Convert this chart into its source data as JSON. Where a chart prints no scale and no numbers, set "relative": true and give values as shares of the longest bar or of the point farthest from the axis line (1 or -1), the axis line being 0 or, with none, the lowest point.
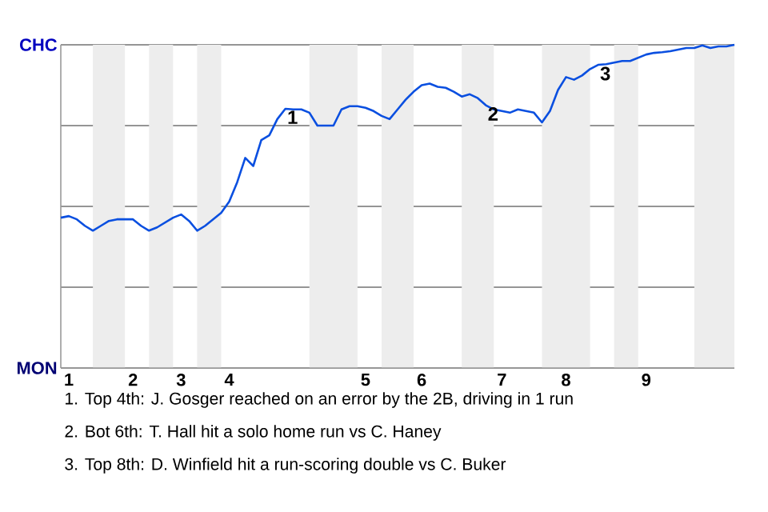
{
  "chart_data": {
    "type": "line",
    "relative": true,
    "categories": [
      null,
      "1",
      null,
      null,
      null,
      null,
      null,
      null,
      null,
      "2",
      null,
      null,
      null,
      null,
      null,
      "3",
      null,
      null,
      null,
      null,
      null,
      "4",
      null,
      null,
      null,
      null,
      null,
      null,
      null,
      null,
      null,
      null,
      null,
      null,
      null,
      null,
      null,
      null,
      "5",
      null,
      null,
      null,
      null,
      null,
      null,
      "6",
      null,
      null,
      null,
      null,
      null,
      null,
      null,
      null,
      null,
      "7",
      null,
      null,
      null,
      null,
      null,
      null,
      null,
      "8",
      null,
      null,
      null,
      null,
      null,
      null,
      null,
      null,
      null,
      "9",
      null,
      null,
      null,
      null,
      null,
      null,
      null,
      null,
      null,
      null,
      null
    ],
    "grid": "y",
    "marker": "none",
    "line_style": "solid",
    "series": [
      {
        "color": "#0a4fe0",
        "values": [
          0.465,
          0.47,
          0.46,
          0.44,
          0.425,
          0.44,
          0.455,
          0.46,
          0.46,
          0.46,
          0.44,
          0.425,
          0.435,
          0.45,
          0.465,
          0.475,
          0.455,
          0.425,
          0.44,
          0.46,
          0.48,
          0.515,
          0.575,
          0.65,
          0.625,
          0.705,
          0.72,
          0.77,
          0.802,
          0.8,
          0.8,
          0.79,
          0.75,
          0.75,
          0.75,
          0.8,
          0.81,
          0.81,
          0.805,
          0.795,
          0.78,
          0.77,
          0.8,
          0.83,
          0.855,
          0.875,
          0.88,
          0.87,
          0.867,
          0.855,
          0.84,
          0.847,
          0.835,
          0.813,
          0.8,
          0.795,
          0.79,
          0.8,
          0.795,
          0.79,
          0.76,
          0.795,
          0.86,
          0.9,
          0.892,
          0.905,
          0.925,
          0.938,
          0.94,
          0.945,
          0.95,
          0.95,
          0.96,
          0.97,
          0.975,
          0.977,
          0.98,
          0.985,
          0.99,
          0.99,
          0.998,
          0.99,
          0.995,
          0.995,
          1
        ]
      }
    ],
    "annotations": [
      "CHC",
      "MON",
      "1. Top 4th: J. Gosger reached on an error by the 2B, driving in 1 run",
      "2. Bot 6th: T. Hall hit a solo home run vs C. Haney",
      "3. Top 8th: D. Winfield hit a run-scoring double vs C. Buker",
      {
        "text": "1",
        "y": 0.802
      },
      {
        "text": "2",
        "y": 0.813
      },
      {
        "text": "3",
        "y": 0.938
      }
    ]
  }
}
